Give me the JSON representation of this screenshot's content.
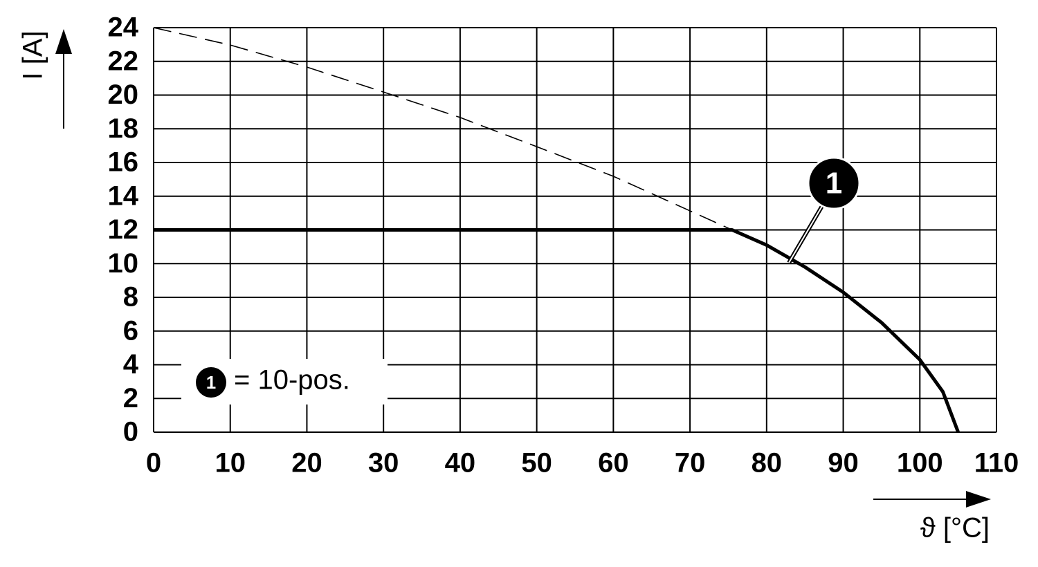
{
  "chart_data": {
    "type": "line",
    "x_label": "ϑ [°C]",
    "y_label": "I [A]",
    "xlim": [
      0,
      110
    ],
    "ylim": [
      0,
      24
    ],
    "xticks": [
      0,
      10,
      20,
      30,
      40,
      50,
      60,
      70,
      80,
      90,
      100,
      110
    ],
    "yticks": [
      0,
      2,
      4,
      6,
      8,
      10,
      12,
      14,
      16,
      18,
      20,
      22,
      24
    ],
    "grid": true,
    "series": [
      {
        "color": "#000000",
        "style": "dashed",
        "x": [
          0,
          10,
          20,
          30,
          40,
          50,
          60,
          70,
          75.5
        ],
        "values": [
          24,
          22.97,
          21.66,
          20.18,
          18.67,
          16.94,
          15.18,
          13.13,
          12
        ]
      },
      {
        "color": "#000000",
        "style": "solid",
        "x": [
          0,
          75.5,
          80,
          85,
          90,
          95,
          100,
          103,
          105
        ],
        "values": [
          12,
          12,
          11.1,
          9.8,
          8.3,
          6.5,
          4.3,
          2.4,
          0
        ]
      }
    ],
    "callout": "1",
    "legend": {
      "marker": "1",
      "text": "= 10-pos."
    }
  }
}
